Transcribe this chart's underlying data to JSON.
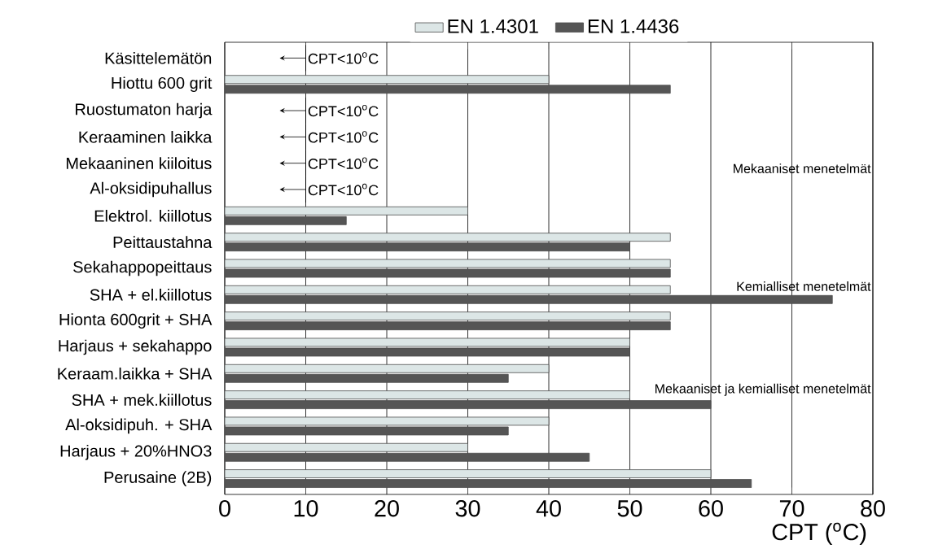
{
  "chart_data": {
    "type": "bar",
    "orientation": "horizontal",
    "xlabel": "CPT ($^{o}$C)",
    "categories": [
      "Käsittelemätön",
      "Hiottu 600 grit",
      "Ruostumaton harja",
      "Keraaminen laikka",
      "Mekaaninen kiiloitus",
      "Al-oksidipuhallus",
      "Elektrol. kiillotus",
      "Peittaustahna",
      "Sekahappopeittaus",
      "SHA + el.kiillotus",
      "Hionta 600grit + SHA",
      "Harjaus + sekahappo",
      "Keraam.laikka + SHA",
      "SHA + mek.kiillotus",
      "Al-oksidipuh. + SHA",
      "Harjaus + 20%HNO3",
      "Perusaine (2B)"
    ],
    "series": [
      {
        "name": "EN 1.4301",
        "color": "#dce6e6",
        "values": [
          null,
          40,
          null,
          null,
          null,
          null,
          30,
          55,
          55,
          55,
          55,
          50,
          40,
          50,
          40,
          30,
          60
        ]
      },
      {
        "name": "EN 1.4436",
        "color": "#555555",
        "values": [
          null,
          55,
          null,
          null,
          null,
          null,
          15,
          50,
          55,
          75,
          55,
          50,
          35,
          60,
          35,
          45,
          65
        ]
      }
    ],
    "xlim": [
      0,
      80
    ],
    "xticks": [
      0,
      10,
      20,
      30,
      40,
      50,
      60,
      70,
      80
    ],
    "grid": "x",
    "legend": "top",
    "annotations": [
      "CPT<10$^{o}$C",
      "CPT<10$^{o}$C",
      "CPT<10$^{o}$C",
      "CPT<10$^{o}$C",
      "CPT<10$^{o}$C",
      "Mekaaniset menetelmät",
      "Kemialliset menetelmät",
      "Mekaaniset ja kemialliset menetelmät"
    ]
  }
}
